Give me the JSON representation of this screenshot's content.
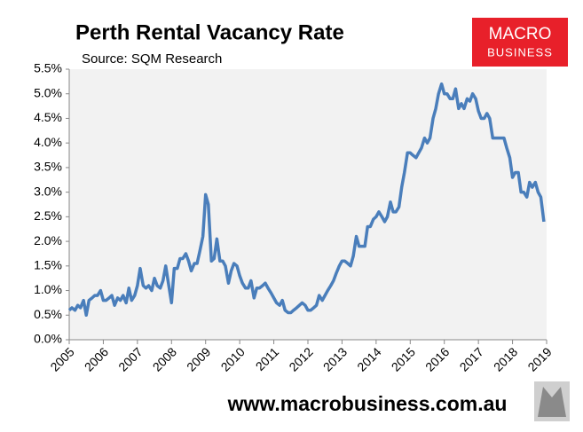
{
  "chart_data": {
    "type": "line",
    "title": "Perth Rental Vacancy Rate",
    "subtitle": "Source: SQM Research",
    "x": [
      2005.0,
      2005.08,
      2005.17,
      2005.25,
      2005.33,
      2005.42,
      2005.5,
      2005.58,
      2005.67,
      2005.75,
      2005.83,
      2005.92,
      2006.0,
      2006.08,
      2006.17,
      2006.25,
      2006.33,
      2006.42,
      2006.5,
      2006.58,
      2006.67,
      2006.75,
      2006.83,
      2006.92,
      2007.0,
      2007.08,
      2007.17,
      2007.25,
      2007.33,
      2007.42,
      2007.5,
      2007.58,
      2007.67,
      2007.75,
      2007.83,
      2007.92,
      2008.0,
      2008.08,
      2008.17,
      2008.25,
      2008.33,
      2008.42,
      2008.5,
      2008.58,
      2008.67,
      2008.75,
      2008.83,
      2008.92,
      2009.0,
      2009.08,
      2009.17,
      2009.25,
      2009.33,
      2009.42,
      2009.5,
      2009.58,
      2009.67,
      2009.75,
      2009.83,
      2009.92,
      2010.0,
      2010.08,
      2010.17,
      2010.25,
      2010.33,
      2010.42,
      2010.5,
      2010.58,
      2010.67,
      2010.75,
      2010.83,
      2010.92,
      2011.0,
      2011.08,
      2011.17,
      2011.25,
      2011.33,
      2011.42,
      2011.5,
      2011.58,
      2011.67,
      2011.75,
      2011.83,
      2011.92,
      2012.0,
      2012.08,
      2012.17,
      2012.25,
      2012.33,
      2012.42,
      2012.5,
      2012.58,
      2012.67,
      2012.75,
      2012.83,
      2012.92,
      2013.0,
      2013.08,
      2013.17,
      2013.25,
      2013.33,
      2013.42,
      2013.5,
      2013.58,
      2013.67,
      2013.75,
      2013.83,
      2013.92,
      2014.0,
      2014.08,
      2014.17,
      2014.25,
      2014.33,
      2014.42,
      2014.5,
      2014.58,
      2014.67,
      2014.75,
      2014.83,
      2014.92,
      2015.0,
      2015.08,
      2015.17,
      2015.25,
      2015.33,
      2015.42,
      2015.5,
      2015.58,
      2015.67,
      2015.75,
      2015.83,
      2015.92,
      2016.0,
      2016.08,
      2016.17,
      2016.25,
      2016.33,
      2016.42,
      2016.5,
      2016.58,
      2016.67,
      2016.75,
      2016.83,
      2016.92,
      2017.0,
      2017.08,
      2017.17,
      2017.25,
      2017.33,
      2017.42,
      2017.5,
      2017.58,
      2017.67,
      2017.75,
      2017.83,
      2017.92,
      2018.0,
      2018.08,
      2018.17,
      2018.25,
      2018.33,
      2018.42,
      2018.5,
      2018.58,
      2018.67,
      2018.75,
      2018.83,
      2018.92
    ],
    "series": [
      {
        "name": "Perth Rental Vacancy Rate",
        "color": "#4a7ebb",
        "values": [
          0.6,
          0.65,
          0.6,
          0.7,
          0.65,
          0.8,
          0.5,
          0.8,
          0.85,
          0.9,
          0.9,
          1.0,
          0.8,
          0.8,
          0.85,
          0.9,
          0.7,
          0.85,
          0.8,
          0.9,
          0.75,
          1.05,
          0.8,
          0.9,
          1.1,
          1.45,
          1.1,
          1.05,
          1.1,
          1.0,
          1.25,
          1.1,
          1.05,
          1.2,
          1.5,
          1.1,
          0.75,
          1.45,
          1.45,
          1.65,
          1.65,
          1.75,
          1.6,
          1.4,
          1.55,
          1.55,
          1.8,
          2.1,
          2.95,
          2.75,
          1.6,
          1.65,
          2.05,
          1.6,
          1.6,
          1.5,
          1.15,
          1.4,
          1.55,
          1.5,
          1.3,
          1.15,
          1.05,
          1.05,
          1.2,
          0.85,
          1.05,
          1.05,
          1.1,
          1.15,
          1.05,
          0.95,
          0.85,
          0.75,
          0.7,
          0.8,
          0.6,
          0.55,
          0.55,
          0.6,
          0.65,
          0.7,
          0.75,
          0.7,
          0.6,
          0.6,
          0.65,
          0.7,
          0.9,
          0.8,
          0.9,
          1.0,
          1.1,
          1.2,
          1.35,
          1.5,
          1.6,
          1.6,
          1.55,
          1.5,
          1.7,
          2.1,
          1.9,
          1.9,
          1.9,
          2.3,
          2.3,
          2.45,
          2.5,
          2.6,
          2.5,
          2.4,
          2.5,
          2.8,
          2.6,
          2.6,
          2.7,
          3.1,
          3.4,
          3.8,
          3.8,
          3.75,
          3.7,
          3.8,
          3.9,
          4.1,
          4.0,
          4.1,
          4.5,
          4.7,
          5.0,
          5.2,
          5.0,
          5.0,
          4.9,
          4.9,
          5.1,
          4.7,
          4.8,
          4.7,
          4.9,
          4.85,
          5.0,
          4.9,
          4.65,
          4.5,
          4.5,
          4.6,
          4.5,
          4.1,
          4.1,
          4.1,
          4.1,
          4.1,
          3.9,
          3.7,
          3.3,
          3.4,
          3.4,
          3.0,
          3.0,
          2.9,
          3.2,
          3.1,
          3.2,
          3.0,
          2.9,
          2.4
        ]
      }
    ],
    "xlim": [
      2005,
      2019
    ],
    "xticks": [
      2005,
      2006,
      2007,
      2008,
      2009,
      2010,
      2011,
      2012,
      2013,
      2014,
      2015,
      2016,
      2017,
      2018,
      2019
    ],
    "ylim": [
      0,
      5.5
    ],
    "yticks": [
      {
        "value": 0,
        "label": "0.0%"
      },
      {
        "value": 0.5,
        "label": "0.5%"
      },
      {
        "value": 1,
        "label": "1.0%"
      },
      {
        "value": 1.5,
        "label": "1.5%"
      },
      {
        "value": 2,
        "label": "2.0%"
      },
      {
        "value": 2.5,
        "label": "2.5%"
      },
      {
        "value": 3,
        "label": "3.0%"
      },
      {
        "value": 3.5,
        "label": "3.5%"
      },
      {
        "value": 4,
        "label": "4.0%"
      },
      {
        "value": 4.5,
        "label": "4.5%"
      },
      {
        "value": 5,
        "label": "5.0%"
      },
      {
        "value": 5.5,
        "label": "5.5%"
      }
    ],
    "grid": false
  },
  "logo": {
    "line1": "MACRO",
    "line2": "BUSINESS"
  },
  "footer": "www.macrobusiness.com.au"
}
